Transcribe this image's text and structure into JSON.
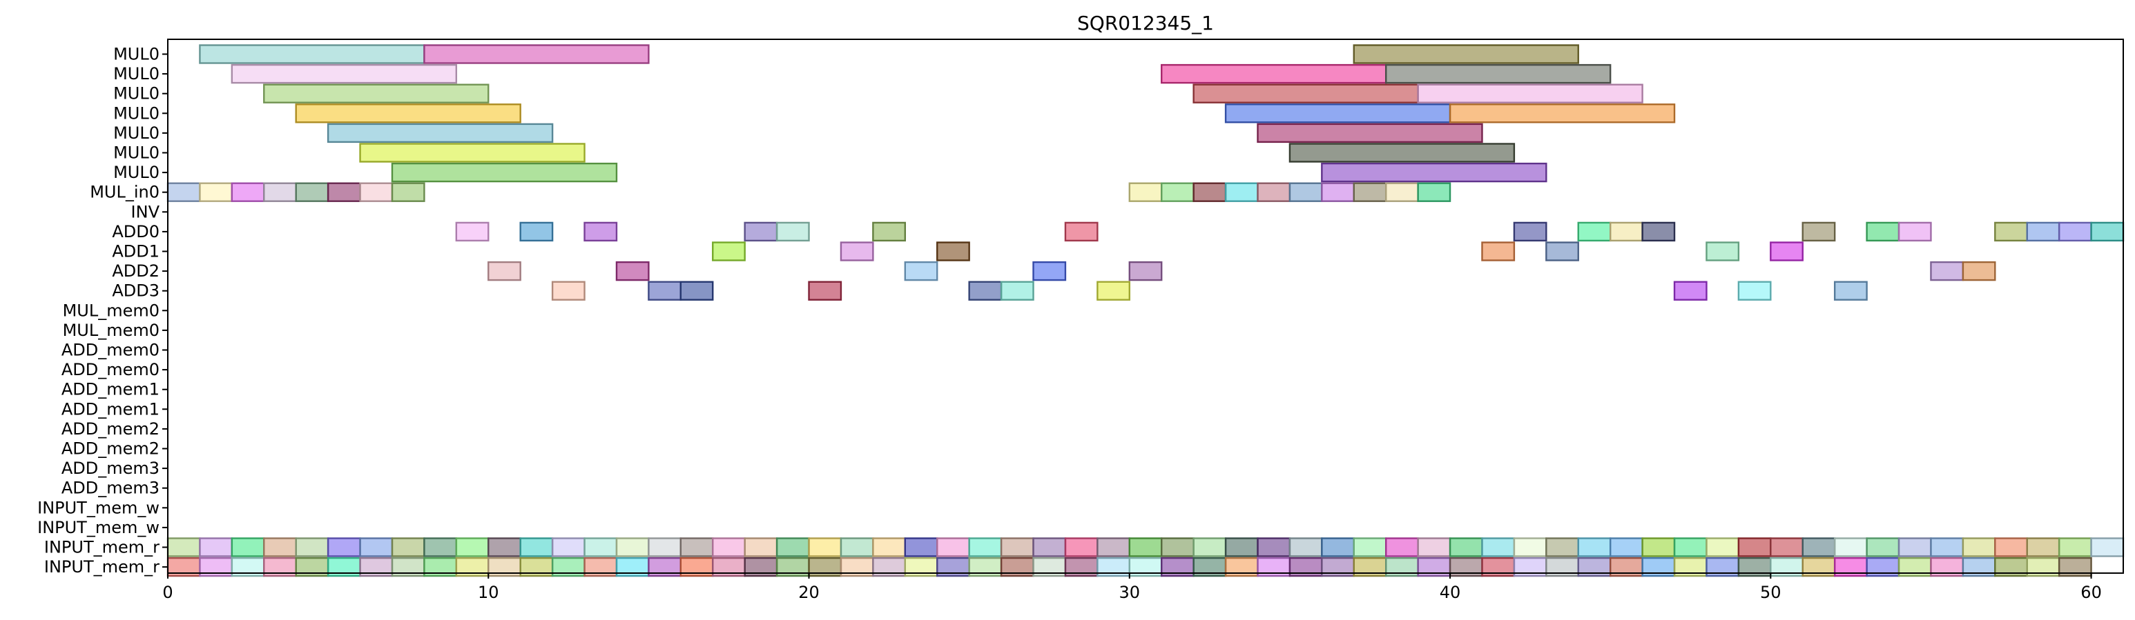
{
  "chart_data": {
    "type": "gantt",
    "title": "SQR012345_1",
    "xlabel": "",
    "ylabel": "",
    "xlim": [
      0,
      61
    ],
    "x_ticks": [
      0,
      10,
      20,
      30,
      40,
      50,
      60
    ],
    "grid": false,
    "rows": [
      "MUL0",
      "MUL0",
      "MUL0",
      "MUL0",
      "MUL0",
      "MUL0",
      "MUL0",
      "MUL_in0",
      "INV",
      "ADD0",
      "ADD1",
      "ADD2",
      "ADD3",
      "MUL_mem0",
      "MUL_mem0",
      "ADD_mem0",
      "ADD_mem0",
      "ADD_mem1",
      "ADD_mem1",
      "ADD_mem2",
      "ADD_mem2",
      "ADD_mem3",
      "ADD_mem3",
      "INPUT_mem_w",
      "INPUT_mem_w",
      "INPUT_mem_r",
      "INPUT_mem_r"
    ],
    "tasks": [
      {
        "row": 0,
        "start": 1,
        "end": 8,
        "color": "#8fd3d1"
      },
      {
        "row": 0,
        "start": 8,
        "end": 15,
        "color": "#d959b8"
      },
      {
        "row": 0,
        "start": 37,
        "end": 44,
        "color": "#8a8238"
      },
      {
        "row": 1,
        "start": 2,
        "end": 9,
        "color": "#f0c6ef"
      },
      {
        "row": 1,
        "start": 31,
        "end": 38,
        "color": "#f0379a"
      },
      {
        "row": 1,
        "start": 38,
        "end": 45,
        "color": "#6a7168"
      },
      {
        "row": 2,
        "start": 3,
        "end": 10,
        "color": "#a3d477"
      },
      {
        "row": 2,
        "start": 32,
        "end": 39,
        "color": "#c2464b"
      },
      {
        "row": 2,
        "start": 39,
        "end": 46,
        "color": "#f2b0e6"
      },
      {
        "row": 3,
        "start": 4,
        "end": 11,
        "color": "#f7c831"
      },
      {
        "row": 3,
        "start": 33,
        "end": 40,
        "color": "#4670ea"
      },
      {
        "row": 3,
        "start": 40,
        "end": 47,
        "color": "#f5973a"
      },
      {
        "row": 4,
        "start": 5,
        "end": 12,
        "color": "#7cc1d6"
      },
      {
        "row": 4,
        "start": 34,
        "end": 41,
        "color": "#a9306d"
      },
      {
        "row": 5,
        "start": 6,
        "end": 13,
        "color": "#d9f23a"
      },
      {
        "row": 5,
        "start": 35,
        "end": 42,
        "color": "#4d5745"
      },
      {
        "row": 6,
        "start": 7,
        "end": 14,
        "color": "#79cf5b"
      },
      {
        "row": 6,
        "start": 36,
        "end": 43,
        "color": "#8848c7"
      },
      {
        "row": 7,
        "start": 0,
        "end": 1,
        "color": "#9db8e3"
      },
      {
        "row": 7,
        "start": 1,
        "end": 2,
        "color": "#fff3b5"
      },
      {
        "row": 7,
        "start": 2,
        "end": 3,
        "color": "#e36ef1"
      },
      {
        "row": 7,
        "start": 3,
        "end": 4,
        "color": "#cfbfd8"
      },
      {
        "row": 7,
        "start": 4,
        "end": 5,
        "color": "#79a886"
      },
      {
        "row": 7,
        "start": 5,
        "end": 6,
        "color": "#93386f"
      },
      {
        "row": 7,
        "start": 6,
        "end": 7,
        "color": "#f5cad0"
      },
      {
        "row": 7,
        "start": 7,
        "end": 8,
        "color": "#96c66e"
      },
      {
        "row": 7,
        "start": 30,
        "end": 31,
        "color": "#f4ee9a"
      },
      {
        "row": 7,
        "start": 31,
        "end": 32,
        "color": "#8ce485"
      },
      {
        "row": 7,
        "start": 32,
        "end": 33,
        "color": "#8b3a3f"
      },
      {
        "row": 7,
        "start": 33,
        "end": 34,
        "color": "#5de3ea"
      },
      {
        "row": 7,
        "start": 34,
        "end": 35,
        "color": "#c7808f"
      },
      {
        "row": 7,
        "start": 35,
        "end": 36,
        "color": "#7aa4cf"
      },
      {
        "row": 7,
        "start": 36,
        "end": 37,
        "color": "#c97de7"
      },
      {
        "row": 7,
        "start": 37,
        "end": 38,
        "color": "#938a6a"
      },
      {
        "row": 7,
        "start": 38,
        "end": 39,
        "color": "#f3e4b0"
      },
      {
        "row": 7,
        "start": 39,
        "end": 40,
        "color": "#3fd88a"
      },
      {
        "row": 9,
        "start": 9,
        "end": 10,
        "color": "#f4b2f5"
      },
      {
        "row": 9,
        "start": 11,
        "end": 12,
        "color": "#4a9fd6"
      },
      {
        "row": 9,
        "start": 13,
        "end": 14,
        "color": "#ad5bd9"
      },
      {
        "row": 9,
        "start": 18,
        "end": 19,
        "color": "#8473c4"
      },
      {
        "row": 9,
        "start": 19,
        "end": 20,
        "color": "#a5e3d2"
      },
      {
        "row": 9,
        "start": 22,
        "end": 23,
        "color": "#8db65a"
      },
      {
        "row": 9,
        "start": 28,
        "end": 29,
        "color": "#e5506d"
      },
      {
        "row": 9,
        "start": 42,
        "end": 43,
        "color": "#4c52a2"
      },
      {
        "row": 9,
        "start": 44,
        "end": 45,
        "color": "#4af29c"
      },
      {
        "row": 9,
        "start": 45,
        "end": 46,
        "color": "#f2e49e"
      },
      {
        "row": 9,
        "start": 46,
        "end": 47,
        "color": "#3c426f"
      },
      {
        "row": 9,
        "start": 51,
        "end": 52,
        "color": "#938a63"
      },
      {
        "row": 9,
        "start": 53,
        "end": 54,
        "color": "#4ad979"
      },
      {
        "row": 9,
        "start": 54,
        "end": 55,
        "color": "#e69af0"
      },
      {
        "row": 9,
        "start": 57,
        "end": 58,
        "color": "#a9b95a"
      },
      {
        "row": 9,
        "start": 58,
        "end": 59,
        "color": "#79a0e8"
      },
      {
        "row": 9,
        "start": 59,
        "end": 60,
        "color": "#8d85f2"
      },
      {
        "row": 9,
        "start": 60,
        "end": 61,
        "color": "#3fc9c0"
      },
      {
        "row": 10,
        "start": 17,
        "end": 18,
        "color": "#a6f23a"
      },
      {
        "row": 10,
        "start": 21,
        "end": 22,
        "color": "#d78ae1"
      },
      {
        "row": 10,
        "start": 24,
        "end": 25,
        "color": "#7b4c1f"
      },
      {
        "row": 10,
        "start": 41,
        "end": 42,
        "color": "#ec874a"
      },
      {
        "row": 10,
        "start": 43,
        "end": 44,
        "color": "#6b8bbe"
      },
      {
        "row": 10,
        "start": 48,
        "end": 49,
        "color": "#8fe4b7"
      },
      {
        "row": 10,
        "start": 50,
        "end": 51,
        "color": "#d534ea"
      },
      {
        "row": 11,
        "start": 10,
        "end": 11,
        "color": "#e8b2b8"
      },
      {
        "row": 11,
        "start": 14,
        "end": 15,
        "color": "#b23a94"
      },
      {
        "row": 11,
        "start": 23,
        "end": 24,
        "color": "#8ac2ef"
      },
      {
        "row": 11,
        "start": 27,
        "end": 28,
        "color": "#4b6af0"
      },
      {
        "row": 11,
        "start": 30,
        "end": 31,
        "color": "#a770b4"
      },
      {
        "row": 11,
        "start": 55,
        "end": 56,
        "color": "#b28cd3"
      },
      {
        "row": 11,
        "start": 56,
        "end": 57,
        "color": "#e0904f"
      },
      {
        "row": 12,
        "start": 12,
        "end": 13,
        "color": "#fcc3ae"
      },
      {
        "row": 12,
        "start": 15,
        "end": 16,
        "color": "#5a69bd"
      },
      {
        "row": 12,
        "start": 16,
        "end": 17,
        "color": "#354f9f"
      },
      {
        "row": 12,
        "start": 20,
        "end": 21,
        "color": "#b5304f"
      },
      {
        "row": 12,
        "start": 25,
        "end": 26,
        "color": "#4a5fa6"
      },
      {
        "row": 12,
        "start": 26,
        "end": 27,
        "color": "#7de7d6"
      },
      {
        "row": 12,
        "start": 29,
        "end": 30,
        "color": "#e4f047"
      },
      {
        "row": 12,
        "start": 47,
        "end": 48,
        "color": "#b23af0"
      },
      {
        "row": 12,
        "start": 49,
        "end": 50,
        "color": "#83f4f7"
      },
      {
        "row": 12,
        "start": 52,
        "end": 53,
        "color": "#7aaedc"
      }
    ],
    "input_r_row25_colors": [
      "#b7dc8f",
      "#d3a3f2",
      "#49ea8c",
      "#d8a985",
      "#b2d49d",
      "#7b6df0",
      "#7ea2e9",
      "#a5ba6f",
      "#5f9c79",
      "#86f47e",
      "#7a6473",
      "#49d6cc",
      "#cbc7f7",
      "#a6ead9",
      "#d9f0bd",
      "#d1d6d8",
      "#a4948f",
      "#f5a3d8",
      "#ecc29f",
      "#5bc17a",
      "#fbe36e",
      "#9ad9b4",
      "#fad791",
      "#4a4cc2",
      "#f39ad8",
      "#6bf0cf",
      "#c7a08f",
      "#9b7bb4",
      "#f0508a",
      "#a688a4",
      "#5ec14a",
      "#7c9a5a",
      "#a2e09d",
      "#4e6f66",
      "#6b3f8f",
      "#a5bbc4",
      "#4d89c9",
      "#98f2a8",
      "#e449c9",
      "#e2b0d0",
      "#4ccf75",
      "#71dce5",
      "#e8f8d3",
      "#a0a57c",
      "#6dd1ef",
      "#6bb3f1",
      "#9ad73a",
      "#4de98a",
      "#def398",
      "#b9353b",
      "#c64a53",
      "#5d8089",
      "#d5f3ea",
      "#74d591",
      "#a7b3e2",
      "#86b2ea",
      "#d5dc85",
      "#f08962",
      "#c4b367",
      "#a4e075",
      "#bfe1f2"
    ],
    "input_r_row26_colors": [
      "#ed6e68",
      "#e391f0",
      "#b5f5ef",
      "#ef8ab1",
      "#8fbb63",
      "#46f2ba",
      "#caa4cb",
      "#b3d2a4",
      "#72e078",
      "#e1e670",
      "#e4c99a",
      "#c2cb55",
      "#6fe48e",
      "#ef8d76",
      "#5fe5f6",
      "#b45bc9",
      "#f66f4a",
      "#dc7ba3",
      "#7a4a66",
      "#7db968",
      "#8c8341",
      "#f4c69f",
      "#c8a9c3",
      "#e5f38f",
      "#6d64c1",
      "#b3e29f",
      "#a55e4f",
      "#c8dcc9",
      "#9a4d7a",
      "#a8e0f6",
      "#b1f5ec",
      "#8444a7",
      "#4e826b",
      "#f5a05b",
      "#d87ff2",
      "#8b3f99",
      "#9a72b4",
      "#c2b64b",
      "#8fd2a6",
      "#b174d6",
      "#8e6e74",
      "#d04a5c",
      "#cab8f7",
      "#b8bfc2",
      "#8f83c8",
      "#d46f5a",
      "#5fa8f0",
      "#d9ea78",
      "#7089e8",
      "#5b7b69",
      "#b3efe0",
      "#d5ba5c",
      "#f03fd3",
      "#6f71ef",
      "#b5e17c",
      "#ee81c4",
      "#85b3e5",
      "#8fa64a",
      "#cfe486",
      "#8e7a55"
    ]
  }
}
